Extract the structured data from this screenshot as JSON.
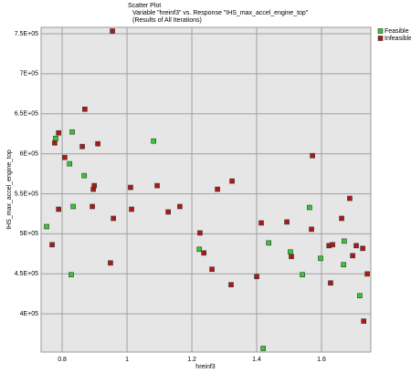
{
  "chart_data": {
    "type": "scatter",
    "title": "Scatter Plot",
    "subtitle": "Variable \"hreinf3\" vs. Response \"IHS_max_accel_engine_top\"",
    "note": "(Results of All Iterations)",
    "x_label": "hreinf3",
    "y_label": "IHS_max_accel_engine_top",
    "xlim": [
      0.735,
      1.752
    ],
    "ylim": [
      352300,
      758000
    ],
    "xticks": [
      0.8,
      1,
      1.2,
      1.4,
      1.6
    ],
    "yticks": [
      {
        "value": 400000,
        "label": "4E+05"
      },
      {
        "value": 450000,
        "label": "4.5E+05"
      },
      {
        "value": 500000,
        "label": "5E+05"
      },
      {
        "value": 550000,
        "label": "5.5E+05"
      },
      {
        "value": 600000,
        "label": "6E+05"
      },
      {
        "value": 650000,
        "label": "6.5E+05"
      },
      {
        "value": 700000,
        "label": "7E+05"
      },
      {
        "value": 750000,
        "label": "7.5E+05"
      }
    ],
    "grid": true,
    "legend": "top-right",
    "series": [
      {
        "name": "Feasible",
        "color": "#2fcc2f",
        "x": [
          0.752,
          0.78,
          0.831,
          0.823,
          0.834,
          0.828,
          0.868,
          1.082,
          1.223,
          1.437,
          1.504,
          1.541,
          1.563,
          1.597,
          1.668,
          1.67,
          1.718,
          1.42
        ],
        "values": [
          509000,
          619300,
          627300,
          587500,
          534100,
          448900,
          572700,
          615900,
          480700,
          488600,
          477300,
          448900,
          532900,
          469300,
          461400,
          490900,
          422700,
          356800
        ]
      },
      {
        "name": "Infeasible",
        "color": "#b01818",
        "x": [
          0.769,
          0.777,
          0.789,
          0.789,
          0.808,
          0.87,
          0.862,
          0.91,
          0.896,
          0.899,
          0.893,
          0.958,
          0.955,
          0.949,
          1.011,
          1.014,
          1.093,
          1.127,
          1.163,
          1.225,
          1.237,
          1.262,
          1.279,
          1.324,
          1.321,
          1.414,
          1.4,
          1.493,
          1.507,
          1.569,
          1.572,
          1.623,
          1.634,
          1.628,
          1.662,
          1.687,
          1.696,
          1.707,
          1.727,
          1.73,
          1.741
        ],
        "values": [
          486400,
          613600,
          530700,
          626100,
          595500,
          655700,
          609100,
          612500,
          555700,
          560200,
          534100,
          519300,
          753400,
          463600,
          558000,
          530700,
          560200,
          527300,
          534100,
          501100,
          476100,
          455700,
          555700,
          565900,
          436400,
          513600,
          446600,
          514800,
          471600,
          505700,
          597700,
          485200,
          486400,
          438600,
          519300,
          544300,
          472700,
          485200,
          481800,
          390900,
          449900
        ]
      }
    ]
  }
}
